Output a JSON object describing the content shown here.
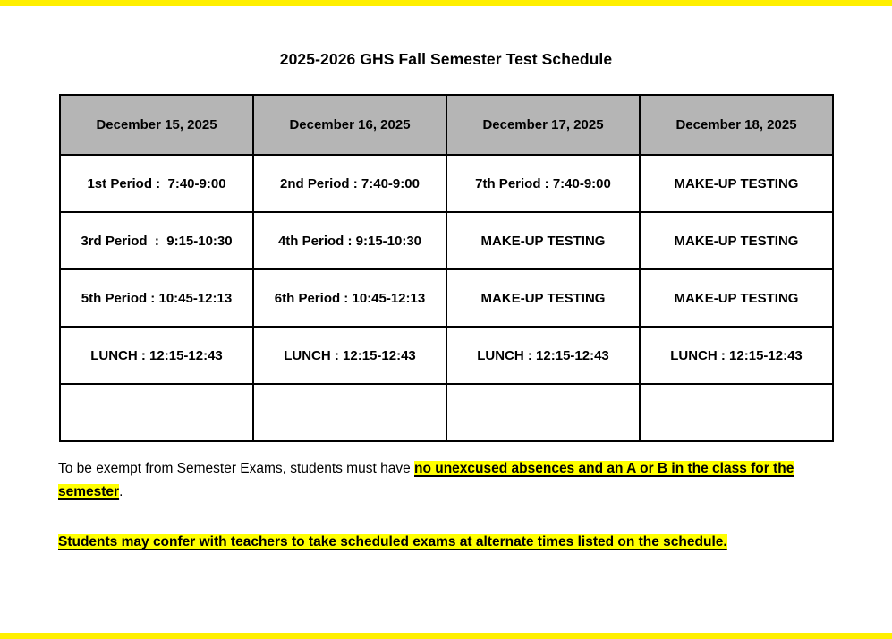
{
  "page": {
    "title": "2025-2026 GHS Fall Semester Test Schedule"
  },
  "colors": {
    "header_bg": "#b5b5b5",
    "highlight": "#ffff00",
    "table_border": "#000000",
    "edge_strip": "#ffef00"
  },
  "table": {
    "headers": [
      "December 15, 2025",
      "December 16, 2025",
      "December 17, 2025",
      "December 18, 2025"
    ],
    "rows": [
      [
        "1st Period :  7:40-9:00",
        "2nd Period : 7:40-9:00",
        "7th Period : 7:40-9:00",
        "MAKE-UP TESTING"
      ],
      [
        "3rd Period  :  9:15-10:30",
        "4th Period : 9:15-10:30",
        "MAKE-UP TESTING",
        "MAKE-UP TESTING"
      ],
      [
        "5th Period : 10:45-12:13",
        "6th Period : 10:45-12:13",
        "MAKE-UP TESTING",
        "MAKE-UP TESTING"
      ],
      [
        "LUNCH : 12:15-12:43",
        "LUNCH : 12:15-12:43",
        "LUNCH : 12:15-12:43",
        "LUNCH : 12:15-12:43"
      ],
      [
        "",
        "",
        "",
        ""
      ]
    ]
  },
  "notes": {
    "exemption_prefix": "To be exempt from Semester Exams, students must have ",
    "exemption_highlight": "no unexcused absences and an A or B in the class for the semester",
    "exemption_suffix": ".",
    "confer_highlight": "Students may confer with teachers to take scheduled exams at alternate times listed on the schedule."
  }
}
